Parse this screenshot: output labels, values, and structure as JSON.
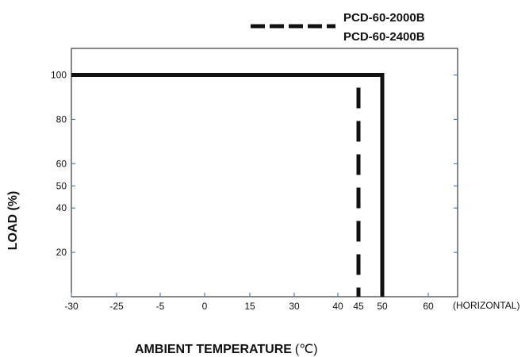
{
  "chart_data": {
    "type": "line",
    "xlabel": "AMBIENT TEMPERATURE",
    "xlabel_unit": "(℃)",
    "ylabel": "LOAD (%)",
    "x_ticks": [
      "-30",
      "-25",
      "-5",
      "0",
      "15",
      "30",
      "40",
      "45",
      "50",
      "60"
    ],
    "x_suffix_label": "(HORIZONTAL)",
    "y_ticks": [
      "20",
      "40",
      "50",
      "60",
      "80",
      "100"
    ],
    "ylim": [
      0,
      112
    ],
    "grid": false,
    "legend_position": "top-right",
    "series": [
      {
        "name": "PCD-60-2000B",
        "style": "dashed",
        "color": "#111111",
        "points": [
          {
            "x": "-30",
            "y": 100
          },
          {
            "x": "45",
            "y": 100
          },
          {
            "x": "45",
            "y": 0
          }
        ]
      },
      {
        "name": "PCD-60-2400B",
        "style": "solid",
        "color": "#111111",
        "points": [
          {
            "x": "-30",
            "y": 100
          },
          {
            "x": "50",
            "y": 100
          },
          {
            "x": "50",
            "y": 0
          }
        ]
      }
    ],
    "colors": {
      "line": "#111111",
      "tick_marks": "#2a6ebb"
    }
  }
}
